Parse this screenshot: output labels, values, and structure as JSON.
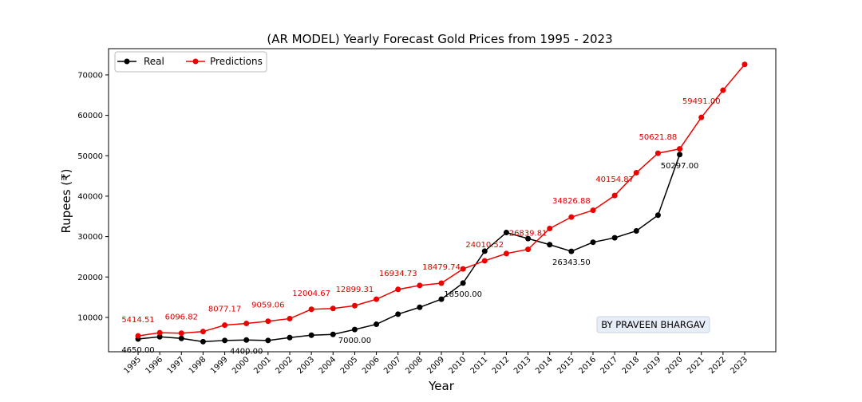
{
  "chart_data": {
    "type": "line",
    "title": "(AR MODEL) Yearly Forecast Gold Prices from 1995 - 2023",
    "xlabel": "Year",
    "ylabel": "Rupees (₹)",
    "x": [
      "1995",
      "1996",
      "1997",
      "1998",
      "1999",
      "2000",
      "2001",
      "2002",
      "2003",
      "2004",
      "2005",
      "2006",
      "2007",
      "2008",
      "2009",
      "2010",
      "2011",
      "2012",
      "2013",
      "2014",
      "2015",
      "2016",
      "2017",
      "2018",
      "2019",
      "2020",
      "2021",
      "2022",
      "2023"
    ],
    "yticks": [
      10000,
      20000,
      30000,
      40000,
      50000,
      60000,
      70000
    ],
    "ytick_labels": [
      "10000",
      "20000",
      "30000",
      "40000",
      "50000",
      "60000",
      "70000"
    ],
    "ylim": [
      1500,
      76500
    ],
    "grid": false,
    "legend_position": "top-left",
    "series": [
      {
        "name": "Real",
        "color": "#000000",
        "values": [
          4650,
          5200,
          4800,
          4000,
          4300,
          4400,
          4300,
          5000,
          5600,
          5800,
          7000,
          8300,
          10800,
          12500,
          14500,
          18500,
          26400,
          31000,
          29500,
          28000,
          26343.5,
          28600,
          29700,
          31400,
          35300,
          50297,
          null,
          null,
          null
        ]
      },
      {
        "name": "Predictions",
        "color": "#ee0000",
        "values": [
          5414.51,
          6200,
          6096.82,
          6500,
          8077.17,
          8500,
          9059.06,
          9700,
          12004.67,
          12200,
          12899.31,
          14500,
          16934.73,
          17900,
          18479.74,
          22000,
          24010.52,
          25800,
          26839.81,
          32000,
          34826.88,
          36500,
          40154.87,
          45800,
          50621.88,
          51700,
          59491.0,
          66200,
          72600
        ]
      }
    ],
    "annotations_real": [
      {
        "index": 0,
        "label": "4650.00"
      },
      {
        "index": 5,
        "label": "4400.00"
      },
      {
        "index": 10,
        "label": "7000.00"
      },
      {
        "index": 15,
        "label": "18500.00"
      },
      {
        "index": 20,
        "label": "26343.50"
      },
      {
        "index": 25,
        "label": "50297.00"
      }
    ],
    "annotations_pred": [
      {
        "index": 0,
        "label": "5414.51"
      },
      {
        "index": 2,
        "label": "6096.82"
      },
      {
        "index": 4,
        "label": "8077.17"
      },
      {
        "index": 6,
        "label": "9059.06"
      },
      {
        "index": 8,
        "label": "12004.67"
      },
      {
        "index": 10,
        "label": "12899.31"
      },
      {
        "index": 12,
        "label": "16934.73"
      },
      {
        "index": 14,
        "label": "18479.74"
      },
      {
        "index": 16,
        "label": "24010.52"
      },
      {
        "index": 18,
        "label": "26839.81"
      },
      {
        "index": 20,
        "label": "34826.88"
      },
      {
        "index": 22,
        "label": "40154.87"
      },
      {
        "index": 24,
        "label": "50621.88"
      },
      {
        "index": 26,
        "label": "59491.00"
      }
    ],
    "credit_text": "BY PRAVEEN BHARGAV"
  }
}
